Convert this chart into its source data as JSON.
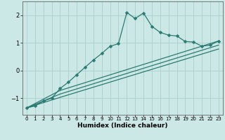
{
  "xlabel": "Humidex (Indice chaleur)",
  "ylabel": "",
  "bg_color": "#cce8e6",
  "grid_color": "#aacfcb",
  "line_color": "#2a7a72",
  "marker": "D",
  "marker_size": 2.5,
  "xlim": [
    -0.5,
    23.5
  ],
  "ylim": [
    -1.6,
    2.5
  ],
  "xticks": [
    0,
    1,
    2,
    3,
    4,
    5,
    6,
    7,
    8,
    9,
    10,
    11,
    12,
    13,
    14,
    15,
    16,
    17,
    18,
    19,
    20,
    21,
    22,
    23
  ],
  "yticks": [
    -1,
    0,
    1,
    2
  ],
  "lines": [
    {
      "x": [
        0,
        1,
        2,
        3,
        4,
        5,
        6,
        7,
        8,
        9,
        10,
        11,
        12,
        13,
        14,
        15,
        16,
        17,
        18,
        19,
        20,
        21,
        22,
        23
      ],
      "y": [
        -1.35,
        -1.28,
        -1.1,
        -1.0,
        -0.65,
        -0.42,
        -0.15,
        0.12,
        0.38,
        0.62,
        0.88,
        0.97,
        2.1,
        1.88,
        2.08,
        1.6,
        1.38,
        1.28,
        1.25,
        1.05,
        1.03,
        0.88,
        0.92,
        1.07
      ]
    },
    {
      "x": [
        0,
        4,
        23
      ],
      "y": [
        -1.35,
        -0.72,
        1.07
      ]
    },
    {
      "x": [
        0,
        4,
        23
      ],
      "y": [
        -1.35,
        -0.85,
        0.92
      ]
    },
    {
      "x": [
        0,
        4,
        23
      ],
      "y": [
        -1.35,
        -0.97,
        0.78
      ]
    }
  ]
}
